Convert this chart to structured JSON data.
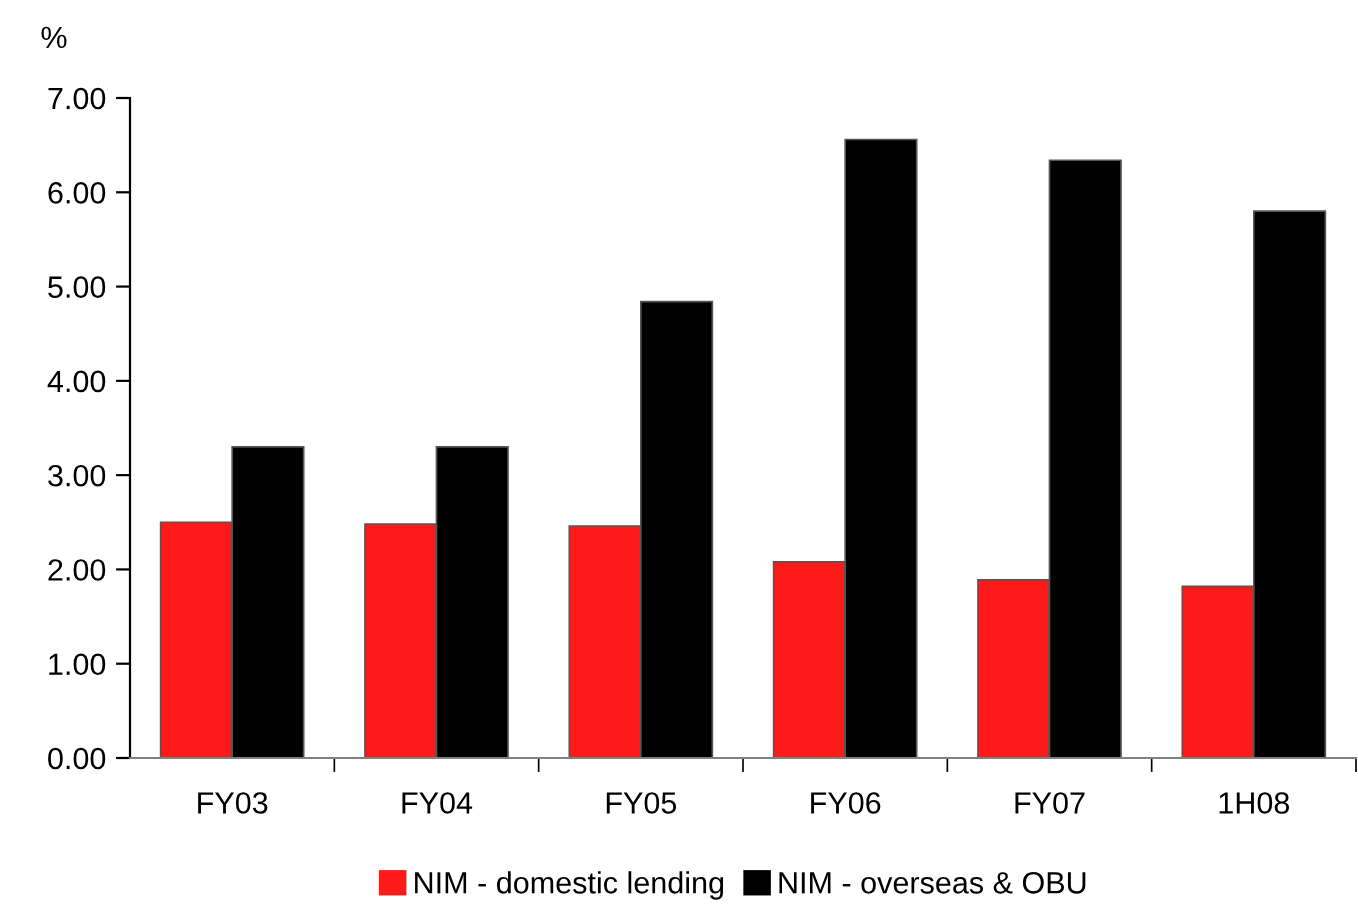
{
  "chart_data": {
    "type": "bar",
    "ylabel": "%",
    "categories": [
      "FY03",
      "FY04",
      "FY05",
      "FY06",
      "FY07",
      "1H08"
    ],
    "series": [
      {
        "name": "NIM - domestic lending",
        "color": "#ff1a1a",
        "values": [
          2.5,
          2.48,
          2.46,
          2.08,
          1.89,
          1.82
        ]
      },
      {
        "name": "NIM - overseas & OBU",
        "color": "#000000",
        "values": [
          3.3,
          3.3,
          4.84,
          6.56,
          6.34,
          5.8
        ]
      }
    ],
    "ylim": [
      0,
      7
    ],
    "yticks": [
      {
        "value": 0,
        "label": "0.00"
      },
      {
        "value": 1,
        "label": "1.00"
      },
      {
        "value": 2,
        "label": "2.00"
      },
      {
        "value": 3,
        "label": "3.00"
      },
      {
        "value": 4,
        "label": "4.00"
      },
      {
        "value": 5,
        "label": "5.00"
      },
      {
        "value": 6,
        "label": "6.00"
      },
      {
        "value": 7,
        "label": "7.00"
      }
    ],
    "grid": false,
    "legend": "bottom"
  }
}
